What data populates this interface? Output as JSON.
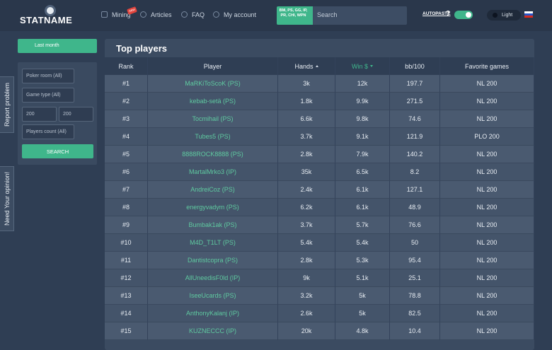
{
  "header": {
    "logo": "STATNAME",
    "nav": [
      {
        "label": "Mining",
        "badge": "new"
      },
      {
        "label": "Articles"
      },
      {
        "label": "FAQ"
      },
      {
        "label": "My account"
      }
    ],
    "rooms": "BM, PS, GG, IP, PR, CHI, WPN",
    "search_placeholder": "Search",
    "autopaste": "AUTOPASTE",
    "help": "?",
    "theme": "Light"
  },
  "sidebar": {
    "period": "Last month",
    "poker_room": "Poker room (All)",
    "game_type": "Game type (All)",
    "min": "200",
    "max": "200",
    "players_count": "Players count (All)",
    "search_button": "SEARCH"
  },
  "side_tabs": [
    "Report problem",
    "Need Your opinion!"
  ],
  "table": {
    "title": "Top players",
    "columns": [
      "Rank",
      "Player",
      "Hands",
      "Win $",
      "bb/100",
      "Favorite games"
    ],
    "rows": [
      [
        "#1",
        "MaRKiToScoK (PS)",
        "3k",
        "12k",
        "197.7",
        "NL 200"
      ],
      [
        "#2",
        "kebab-setä (PS)",
        "1.8k",
        "9.9k",
        "271.5",
        "NL 200"
      ],
      [
        "#3",
        "Tocmihail (PS)",
        "6.6k",
        "9.8k",
        "74.6",
        "NL 200"
      ],
      [
        "#4",
        "Tubes5 (PS)",
        "3.7k",
        "9.1k",
        "121.9",
        "PLO 200"
      ],
      [
        "#5",
        "8888ROCK8888 (PS)",
        "2.8k",
        "7.9k",
        "140.2",
        "NL 200"
      ],
      [
        "#6",
        "MartalMrko3 (IP)",
        "35k",
        "6.5k",
        "8.2",
        "NL 200"
      ],
      [
        "#7",
        "AndreiCoz (PS)",
        "2.4k",
        "6.1k",
        "127.1",
        "NL 200"
      ],
      [
        "#8",
        "energyvadym (PS)",
        "6.2k",
        "6.1k",
        "48.9",
        "NL 200"
      ],
      [
        "#9",
        "Bumbak1ak (PS)",
        "3.7k",
        "5.7k",
        "76.6",
        "NL 200"
      ],
      [
        "#10",
        "M4D_T1LT (PS)",
        "5.4k",
        "5.4k",
        "50",
        "NL 200"
      ],
      [
        "#11",
        "Dantistcopra (PS)",
        "2.8k",
        "5.3k",
        "95.4",
        "NL 200"
      ],
      [
        "#12",
        "AllUneedisF0ld (IP)",
        "9k",
        "5.1k",
        "25.1",
        "NL 200"
      ],
      [
        "#13",
        "IseeUcards (PS)",
        "3.2k",
        "5k",
        "78.8",
        "NL 200"
      ],
      [
        "#14",
        "AnthonyKalanj (IP)",
        "2.6k",
        "5k",
        "82.5",
        "NL 200"
      ],
      [
        "#15",
        "KUZNECCC (IP)",
        "20k",
        "4.8k",
        "10.4",
        "NL 200"
      ]
    ]
  }
}
